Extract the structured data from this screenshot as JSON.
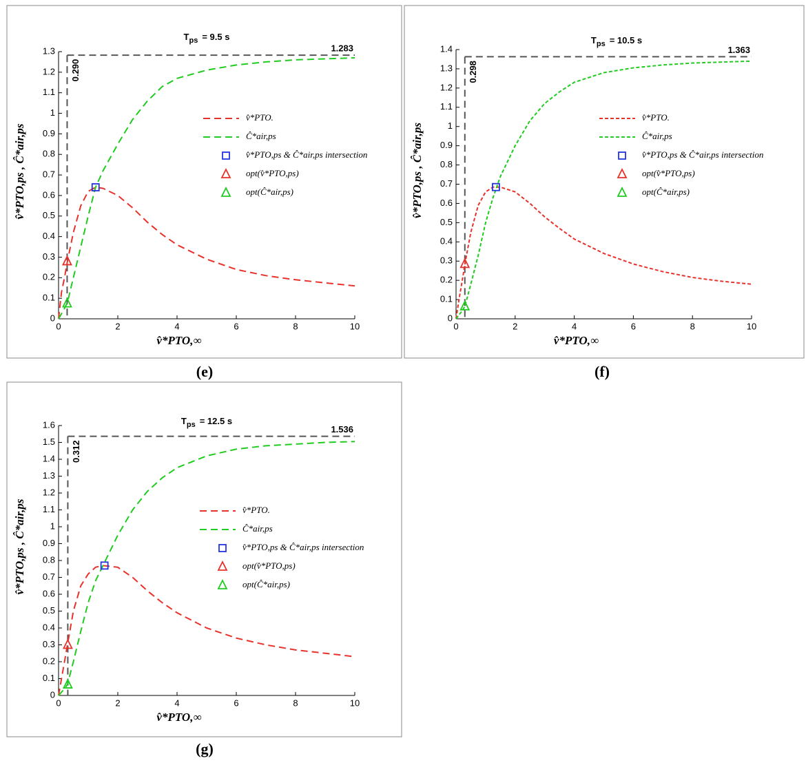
{
  "chart_data": [
    {
      "type": "line",
      "panel_label": "(e)",
      "title": {
        "symbol": "T",
        "subscript": "ps",
        "text": "= 9.5 s"
      },
      "xlabel": "v̂*PTO,∞",
      "ylabel": "v̂*PTO,ps , Ĉ*air,ps",
      "xlim": [
        0,
        10
      ],
      "ylim": [
        0,
        1.3
      ],
      "xticks": [
        0,
        2,
        4,
        6,
        8,
        10
      ],
      "yticks": [
        0,
        0.1,
        0.2,
        0.3,
        0.4,
        0.5,
        0.6,
        0.7,
        0.8,
        0.9,
        1,
        1.1,
        1.2,
        1.3
      ],
      "hline": 1.283,
      "vline": {
        "value": 0.29,
        "label": "0.290"
      },
      "x": [
        0,
        0.1,
        0.2,
        0.3,
        0.5,
        0.75,
        1,
        1.25,
        1.5,
        2,
        2.5,
        3,
        3.5,
        4,
        5,
        6,
        7,
        8,
        9,
        10
      ],
      "series": [
        {
          "name": "v̂*PTO.",
          "color": "#e8312a",
          "values": [
            0,
            0.13,
            0.2,
            0.28,
            0.42,
            0.55,
            0.62,
            0.64,
            0.635,
            0.6,
            0.54,
            0.47,
            0.41,
            0.36,
            0.29,
            0.24,
            0.21,
            0.19,
            0.175,
            0.16
          ]
        },
        {
          "name": "Ĉ*air,ps",
          "color": "#1ecb1e",
          "values": [
            0,
            0.025,
            0.05,
            0.08,
            0.2,
            0.35,
            0.5,
            0.64,
            0.72,
            0.85,
            0.97,
            1.06,
            1.13,
            1.17,
            1.21,
            1.235,
            1.25,
            1.26,
            1.265,
            1.27
          ]
        },
        {
          "name": "v̂*PTO,ps & Ĉ*air,ps  intersection",
          "color": "#2233dd",
          "marker": "square",
          "x": [
            1.25
          ],
          "values": [
            0.64
          ]
        },
        {
          "name": "opt(v̂*PTO,ps)",
          "color": "#e8312a",
          "marker": "triangle",
          "x": [
            0.29
          ],
          "values": [
            0.28
          ]
        },
        {
          "name": "opt(Ĉ*air,ps)",
          "color": "#1ecb1e",
          "marker": "triangle",
          "x": [
            0.29
          ],
          "values": [
            0.075
          ]
        }
      ]
    },
    {
      "type": "line",
      "panel_label": "(f)",
      "title": {
        "symbol": "T",
        "subscript": "ps",
        "text": "= 10.5 s"
      },
      "xlabel": "v̂*PTO,∞",
      "ylabel": "v̂*PTO,ps , Ĉ*air,ps",
      "xlim": [
        0,
        10
      ],
      "ylim": [
        0,
        1.4
      ],
      "xticks": [
        0,
        2,
        4,
        6,
        8,
        10
      ],
      "yticks": [
        0,
        0.1,
        0.2,
        0.3,
        0.4,
        0.5,
        0.6,
        0.7,
        0.8,
        0.9,
        1,
        1.1,
        1.2,
        1.3,
        1.4
      ],
      "hline": 1.363,
      "vline": 0.298,
      "x": [
        0,
        0.1,
        0.2,
        0.3,
        0.5,
        0.75,
        1,
        1.25,
        1.5,
        2,
        2.5,
        3,
        3.5,
        4,
        5,
        6,
        7,
        8,
        9,
        10
      ],
      "series": [
        {
          "name": "v̂*PTO.",
          "color": "#e8312a",
          "values": [
            0,
            0.1,
            0.19,
            0.285,
            0.45,
            0.59,
            0.66,
            0.685,
            0.685,
            0.66,
            0.6,
            0.53,
            0.47,
            0.415,
            0.34,
            0.285,
            0.245,
            0.215,
            0.195,
            0.18
          ]
        },
        {
          "name": "Ĉ*air,ps",
          "color": "#1ecb1e",
          "values": [
            0,
            0.02,
            0.04,
            0.065,
            0.18,
            0.33,
            0.5,
            0.63,
            0.74,
            0.9,
            1.03,
            1.12,
            1.18,
            1.23,
            1.28,
            1.305,
            1.32,
            1.33,
            1.335,
            1.34
          ]
        },
        {
          "name": "v̂*PTO,ps & Ĉ*air,ps  intersection",
          "color": "#2233dd",
          "marker": "square",
          "x": [
            1.35
          ],
          "values": [
            0.685
          ]
        },
        {
          "name": "opt(v̂*PTO,ps)",
          "color": "#e8312a",
          "marker": "triangle",
          "x": [
            0.298
          ],
          "values": [
            0.285
          ]
        },
        {
          "name": "opt(Ĉ*air,ps)",
          "color": "#1ecb1e",
          "marker": "triangle",
          "x": [
            0.298
          ],
          "values": [
            0.065
          ]
        }
      ]
    },
    {
      "type": "line",
      "panel_label": "(g)",
      "title": {
        "symbol": "T",
        "subscript": "ps",
        "text": "= 12.5 s"
      },
      "xlabel": "v̂*PTO,∞",
      "ylabel": "v̂*PTO,ps , Ĉ*air,ps",
      "xlim": [
        0,
        10
      ],
      "ylim": [
        0,
        1.6
      ],
      "xticks": [
        0,
        2,
        4,
        6,
        8,
        10
      ],
      "yticks": [
        0,
        0.1,
        0.2,
        0.3,
        0.4,
        0.5,
        0.6,
        0.7,
        0.8,
        0.9,
        1,
        1.1,
        1.2,
        1.3,
        1.4,
        1.5,
        1.6
      ],
      "hline": 1.536,
      "vline": 0.312,
      "x": [
        0,
        0.1,
        0.2,
        0.3,
        0.5,
        0.75,
        1,
        1.25,
        1.5,
        2,
        2.5,
        3,
        3.5,
        4,
        5,
        6,
        7,
        8,
        9,
        10
      ],
      "series": [
        {
          "name": "v̂*PTO.",
          "color": "#e8312a",
          "values": [
            0,
            0.1,
            0.2,
            0.3,
            0.5,
            0.65,
            0.72,
            0.76,
            0.77,
            0.76,
            0.7,
            0.62,
            0.55,
            0.49,
            0.4,
            0.34,
            0.3,
            0.27,
            0.25,
            0.23
          ]
        },
        {
          "name": "Ĉ*air,ps",
          "color": "#1ecb1e",
          "values": [
            0,
            0.02,
            0.04,
            0.065,
            0.2,
            0.38,
            0.55,
            0.68,
            0.77,
            0.95,
            1.1,
            1.21,
            1.29,
            1.35,
            1.42,
            1.46,
            1.48,
            1.49,
            1.5,
            1.505
          ]
        },
        {
          "name": "v̂*PTO,ps & Ĉ*air,ps  intersection",
          "color": "#2233dd",
          "marker": "square",
          "x": [
            1.55
          ],
          "values": [
            0.77
          ]
        },
        {
          "name": "opt(v̂*PTO,ps)",
          "color": "#e8312a",
          "marker": "triangle",
          "x": [
            0.312
          ],
          "values": [
            0.3
          ]
        },
        {
          "name": "opt(Ĉ*air,ps)",
          "color": "#1ecb1e",
          "marker": "triangle",
          "x": [
            0.312
          ],
          "values": [
            0.065
          ]
        }
      ]
    }
  ]
}
